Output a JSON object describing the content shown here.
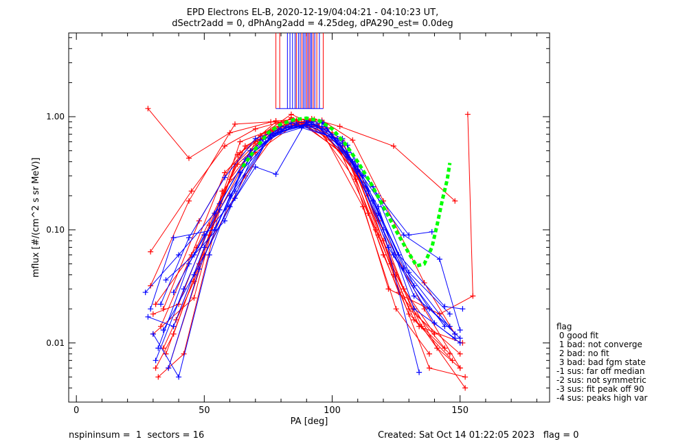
{
  "chart_data": {
    "type": "line",
    "title": "EPD Electrons EL-B, 2020-12-19/04:04:21 - 04:10:23 UT,",
    "subtitle": "dSectr2add = 0, dPhAng2add = 4.25deg, dPA290_est=    0.0deg",
    "xlabel": "PA [deg]",
    "ylabel": "mflux [#/(cm^2 s sr MeV)]",
    "xlim": [
      -3,
      185
    ],
    "ylim": [
      0.003,
      5.5
    ],
    "y_scale": "log",
    "x_ticks": [
      "0",
      "50",
      "100",
      "150"
    ],
    "y_ticks": [
      "0.01",
      "0.10",
      "1.00"
    ],
    "series": [
      {
        "color": "#ff0000",
        "points": [
          [
            28,
            1.18
          ],
          [
            44,
            0.43
          ],
          [
            60,
            0.72
          ],
          [
            78,
            0.92
          ],
          [
            92,
            0.96
          ],
          [
            103,
            0.82
          ],
          [
            124,
            0.55
          ],
          [
            148,
            0.18
          ]
        ]
      },
      {
        "color": "#ff0000",
        "points": [
          [
            29,
            0.064
          ],
          [
            45,
            0.22
          ],
          [
            58,
            0.55
          ],
          [
            70,
            0.78
          ],
          [
            84,
            0.95
          ],
          [
            96,
            0.93
          ],
          [
            108,
            0.62
          ],
          [
            120,
            0.18
          ],
          [
            136,
            0.034
          ],
          [
            148,
            0.012
          ]
        ]
      },
      {
        "color": "#ff0000",
        "points": [
          [
            31,
            0.006
          ],
          [
            38,
            0.012
          ],
          [
            52,
            0.09
          ],
          [
            64,
            0.48
          ],
          [
            84,
            0.98
          ],
          [
            104,
            0.55
          ],
          [
            118,
            0.09
          ],
          [
            130,
            0.02
          ],
          [
            150,
            0.008
          ]
        ]
      },
      {
        "color": "#ff0000",
        "points": [
          [
            32,
            0.005
          ],
          [
            42,
            0.008
          ],
          [
            56,
            0.15
          ],
          [
            70,
            0.6
          ],
          [
            88,
            0.9
          ],
          [
            108,
            0.4
          ],
          [
            124,
            0.04
          ],
          [
            138,
            0.006
          ],
          [
            152,
            0.005
          ]
        ]
      },
      {
        "color": "#ff0000",
        "points": [
          [
            30,
            0.018
          ],
          [
            40,
            0.022
          ],
          [
            52,
            0.11
          ],
          [
            66,
            0.55
          ],
          [
            86,
            0.93
          ],
          [
            104,
            0.62
          ],
          [
            120,
            0.08
          ],
          [
            134,
            0.014
          ],
          [
            151,
            0.01
          ]
        ]
      },
      {
        "color": "#ff0000",
        "points": [
          [
            34,
            0.009
          ],
          [
            46,
            0.035
          ],
          [
            60,
            0.28
          ],
          [
            74,
            0.72
          ],
          [
            90,
            0.88
          ],
          [
            106,
            0.46
          ],
          [
            120,
            0.06
          ],
          [
            130,
            0.018
          ],
          [
            146,
            0.008
          ]
        ]
      },
      {
        "color": "#ff0000",
        "points": [
          [
            33,
            0.014
          ],
          [
            45,
            0.06
          ],
          [
            58,
            0.32
          ],
          [
            72,
            0.68
          ],
          [
            84,
            1.05
          ],
          [
            100,
            0.72
          ],
          [
            114,
            0.14
          ],
          [
            126,
            0.028
          ],
          [
            144,
            0.009
          ]
        ]
      },
      {
        "color": "#ff0000",
        "points": [
          [
            29,
            0.032
          ],
          [
            44,
            0.18
          ],
          [
            62,
            0.86
          ],
          [
            76,
            0.9
          ],
          [
            96,
            0.9
          ],
          [
            110,
            0.33
          ],
          [
            118,
            0.12
          ],
          [
            136,
            0.02
          ],
          [
            150,
            0.006
          ]
        ]
      },
      {
        "color": "#ff0000",
        "points": [
          [
            31,
            0.022
          ],
          [
            47,
            0.07
          ],
          [
            63,
            0.38
          ],
          [
            79,
            0.82
          ],
          [
            93,
            0.95
          ],
          [
            112,
            0.26
          ],
          [
            123,
            0.05
          ],
          [
            135,
            0.014
          ],
          [
            152,
            0.004
          ]
        ]
      },
      {
        "color": "#ff0000",
        "points": [
          [
            35,
            0.008
          ],
          [
            48,
            0.05
          ],
          [
            64,
            0.6
          ],
          [
            82,
            0.86
          ],
          [
            98,
            0.8
          ],
          [
            114,
            0.2
          ],
          [
            128,
            0.03
          ],
          [
            140,
            0.012
          ]
        ]
      },
      {
        "color": "#ff0000",
        "points": [
          [
            30,
            0.012
          ],
          [
            46,
            0.025
          ],
          [
            57,
            0.22
          ],
          [
            70,
            0.48
          ],
          [
            87,
            0.9
          ],
          [
            103,
            0.5
          ],
          [
            117,
            0.1
          ],
          [
            132,
            0.016
          ],
          [
            147,
            0.007
          ]
        ]
      },
      {
        "color": "#ff0000",
        "points": [
          [
            36,
            0.006
          ],
          [
            50,
            0.06
          ],
          [
            66,
            0.3
          ],
          [
            80,
            0.82
          ],
          [
            94,
            0.86
          ],
          [
            110,
            0.3
          ],
          [
            125,
            0.04
          ],
          [
            141,
            0.009
          ],
          [
            150,
            0.006
          ]
        ]
      },
      {
        "color": "#ff0000",
        "points": [
          [
            39,
            0.016
          ],
          [
            52,
            0.09
          ],
          [
            62,
            0.38
          ],
          [
            76,
            0.76
          ],
          [
            92,
            0.92
          ],
          [
            109,
            0.28
          ],
          [
            122,
            0.03
          ],
          [
            142,
            0.018
          ],
          [
            155,
            0.026
          ],
          [
            153,
            1.05
          ]
        ]
      },
      {
        "color": "#ff0000",
        "points": [
          [
            34,
            0.02
          ],
          [
            48,
            0.12
          ],
          [
            63,
            0.46
          ],
          [
            78,
            0.9
          ],
          [
            95,
            0.82
          ],
          [
            112,
            0.16
          ],
          [
            125,
            0.02
          ],
          [
            138,
            0.008
          ]
        ]
      },
      {
        "color": "#0000ff",
        "points": [
          [
            27,
            0.028
          ],
          [
            40,
            0.06
          ],
          [
            54,
            0.14
          ],
          [
            68,
            0.5
          ],
          [
            80,
            0.82
          ],
          [
            94,
            0.84
          ],
          [
            110,
            0.34
          ],
          [
            128,
            0.09
          ],
          [
            142,
            0.055
          ],
          [
            150,
            0.013
          ]
        ]
      },
      {
        "color": "#0000ff",
        "points": [
          [
            28,
            0.017
          ],
          [
            38,
            0.014
          ],
          [
            50,
            0.07
          ],
          [
            62,
            0.22
          ],
          [
            76,
            0.68
          ],
          [
            90,
            0.86
          ],
          [
            104,
            0.58
          ],
          [
            118,
            0.16
          ],
          [
            132,
            0.02
          ],
          [
            148,
            0.011
          ]
        ]
      },
      {
        "color": "#0000ff",
        "points": [
          [
            30,
            0.012
          ],
          [
            40,
            0.005
          ],
          [
            52,
            0.06
          ],
          [
            64,
            0.32
          ],
          [
            78,
            0.72
          ],
          [
            92,
            0.9
          ],
          [
            106,
            0.48
          ],
          [
            120,
            0.1
          ],
          [
            134,
            0.0055
          ]
        ]
      },
      {
        "color": "#0000ff",
        "points": [
          [
            31,
            0.007
          ],
          [
            42,
            0.03
          ],
          [
            56,
            0.17
          ],
          [
            66,
            0.42
          ],
          [
            80,
            0.78
          ],
          [
            96,
            0.88
          ],
          [
            108,
            0.4
          ],
          [
            122,
            0.07
          ],
          [
            140,
            0.015
          ],
          [
            150,
            0.01
          ]
        ]
      },
      {
        "color": "#0000ff",
        "points": [
          [
            33,
            0.022
          ],
          [
            44,
            0.085
          ],
          [
            58,
            0.29
          ],
          [
            70,
            0.64
          ],
          [
            84,
            0.83
          ],
          [
            98,
            0.78
          ],
          [
            114,
            0.22
          ],
          [
            126,
            0.06
          ],
          [
            144,
            0.021
          ],
          [
            151,
            0.02
          ]
        ]
      },
      {
        "color": "#0000ff",
        "points": [
          [
            32,
            0.009
          ],
          [
            44,
            0.05
          ],
          [
            56,
            0.15
          ],
          [
            72,
            0.62
          ],
          [
            88,
            0.8
          ],
          [
            100,
            0.66
          ],
          [
            116,
            0.24
          ],
          [
            130,
            0.042
          ],
          [
            146,
            0.018
          ]
        ]
      },
      {
        "color": "#0000ff",
        "points": [
          [
            29,
            0.02
          ],
          [
            38,
            0.085
          ],
          [
            54,
            0.1
          ],
          [
            68,
            0.46
          ],
          [
            82,
            0.8
          ],
          [
            96,
            0.82
          ],
          [
            112,
            0.3
          ],
          [
            128,
            0.046
          ],
          [
            148,
            0.012
          ]
        ]
      },
      {
        "color": "#0000ff",
        "points": [
          [
            36,
            0.006
          ],
          [
            48,
            0.045
          ],
          [
            60,
            0.2
          ],
          [
            74,
            0.6
          ],
          [
            86,
            0.86
          ],
          [
            102,
            0.64
          ],
          [
            116,
            0.18
          ],
          [
            132,
            0.032
          ],
          [
            144,
            0.014
          ]
        ]
      },
      {
        "color": "#0000ff",
        "points": [
          [
            34,
            0.013
          ],
          [
            46,
            0.04
          ],
          [
            60,
            0.16
          ],
          [
            70,
            0.36
          ],
          [
            78,
            0.31
          ],
          [
            90,
            0.92
          ],
          [
            106,
            0.56
          ],
          [
            118,
            0.14
          ],
          [
            132,
            0.026
          ],
          [
            146,
            0.014
          ]
        ]
      },
      {
        "color": "#0000ff",
        "points": [
          [
            38,
            0.028
          ],
          [
            50,
            0.09
          ],
          [
            62,
            0.19
          ],
          [
            76,
            0.7
          ],
          [
            92,
            0.86
          ],
          [
            104,
            0.64
          ],
          [
            118,
            0.2
          ],
          [
            130,
            0.09
          ],
          [
            139,
            0.096
          ]
        ]
      },
      {
        "color": "#0000ff",
        "points": [
          [
            35,
            0.036
          ],
          [
            46,
            0.06
          ],
          [
            58,
            0.12
          ],
          [
            70,
            0.52
          ],
          [
            84,
            0.88
          ],
          [
            96,
            0.9
          ],
          [
            110,
            0.36
          ],
          [
            124,
            0.06
          ],
          [
            138,
            0.02
          ],
          [
            150,
            0.011
          ]
        ]
      }
    ],
    "vlines": [
      {
        "x": 78,
        "color": "#ff0000"
      },
      {
        "x": 79.5,
        "color": "#ff0000"
      },
      {
        "x": 82.5,
        "color": "#0000ff"
      },
      {
        "x": 83.5,
        "color": "#0000ff"
      },
      {
        "x": 84.5,
        "color": "#0000ff"
      },
      {
        "x": 85.5,
        "color": "#0000ff"
      },
      {
        "x": 86,
        "color": "#ff0000"
      },
      {
        "x": 86.8,
        "color": "#0000ff"
      },
      {
        "x": 87.5,
        "color": "#0000ff"
      },
      {
        "x": 88.2,
        "color": "#ff0000"
      },
      {
        "x": 88.8,
        "color": "#0000ff"
      },
      {
        "x": 89.4,
        "color": "#0000ff"
      },
      {
        "x": 90,
        "color": "#ff0000"
      },
      {
        "x": 90.5,
        "color": "#0000ff"
      },
      {
        "x": 91,
        "color": "#ff0000"
      },
      {
        "x": 91.5,
        "color": "#0000ff"
      },
      {
        "x": 92,
        "color": "#0000ff"
      },
      {
        "x": 92.6,
        "color": "#ff0000"
      },
      {
        "x": 93.2,
        "color": "#0000ff"
      },
      {
        "x": 94,
        "color": "#ff0000"
      },
      {
        "x": 95,
        "color": "#0000ff"
      },
      {
        "x": 96.5,
        "color": "#ff0000"
      }
    ],
    "fit_curve": {
      "color": "#00ff00",
      "points": [
        [
          65,
          0.36
        ],
        [
          70,
          0.52
        ],
        [
          75,
          0.72
        ],
        [
          80,
          0.86
        ],
        [
          85,
          0.94
        ],
        [
          90,
          0.97
        ],
        [
          95,
          0.92
        ],
        [
          100,
          0.78
        ],
        [
          105,
          0.58
        ],
        [
          110,
          0.4
        ],
        [
          115,
          0.26
        ],
        [
          120,
          0.16
        ],
        [
          125,
          0.098
        ],
        [
          130,
          0.062
        ],
        [
          133,
          0.048
        ],
        [
          136,
          0.05
        ],
        [
          139,
          0.07
        ],
        [
          141,
          0.11
        ],
        [
          143,
          0.18
        ],
        [
          145,
          0.28
        ],
        [
          146,
          0.39
        ]
      ]
    }
  },
  "legend": {
    "title": "flag",
    "items": [
      " 0 good fit",
      " 1 bad: not converge",
      " 2 bad: no fit",
      " 3 bad: bad fgm state",
      "-1 sus: far off median",
      "-2 sus: not symmetric",
      "-3 sus: fit peak off 90",
      "-4 sus: peaks high var"
    ]
  },
  "footer": {
    "left": "nspininsum =  1  sectors = 16",
    "right": "Created: Sat Oct 14 01:22:05 2023   flag = 0"
  }
}
